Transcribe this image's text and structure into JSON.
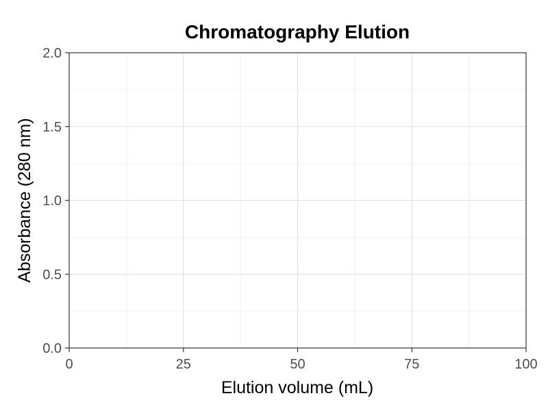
{
  "chart_data": {
    "type": "line",
    "title": "Chromatography Elution",
    "xlabel": "Elution volume (mL)",
    "ylabel": "Absorbance (280 nm)",
    "xlim": [
      0,
      100
    ],
    "ylim": [
      0,
      2
    ],
    "x_ticks": [
      0,
      25,
      50,
      75,
      100
    ],
    "y_ticks": [
      0,
      0.5,
      1,
      1.5,
      2
    ],
    "x_tick_labels": [
      "0",
      "25",
      "50",
      "75",
      "100"
    ],
    "y_tick_labels": [
      "0.0",
      "0.5",
      "1.0",
      "1.5",
      "2.0"
    ],
    "grid": true,
    "series": []
  }
}
